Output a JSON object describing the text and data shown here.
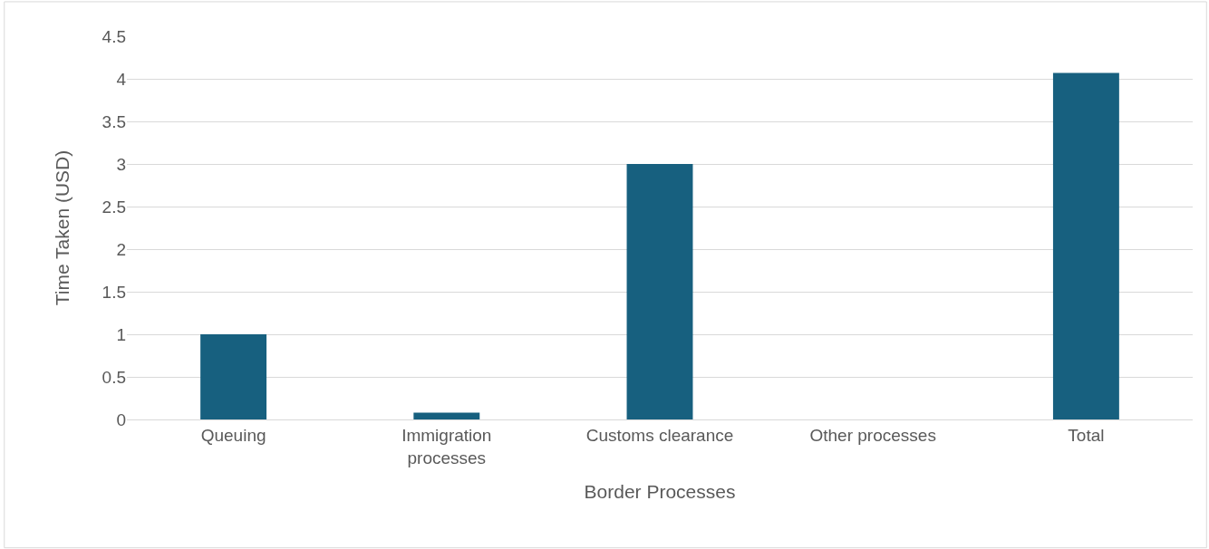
{
  "chart_data": {
    "type": "bar",
    "xlabel": "Border Processes",
    "ylabel": "Time Taken (USD)",
    "categories": [
      "Queuing",
      "Immigration processes",
      "Customs clearance",
      "Other processes",
      "Total"
    ],
    "values": [
      1,
      0.08,
      3,
      0,
      4.07
    ],
    "color": "#17607f",
    "ylim": [
      0,
      4.5
    ],
    "yticks": [
      0,
      0.5,
      1,
      1.5,
      2,
      2.5,
      3,
      3.5,
      4,
      4.5
    ],
    "grid": "y"
  }
}
